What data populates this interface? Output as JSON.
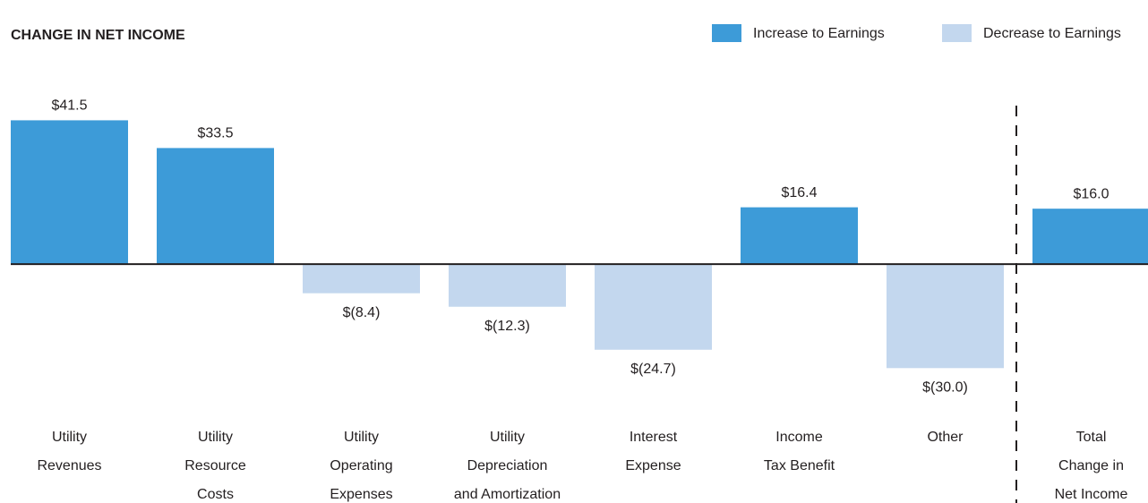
{
  "chart_data": {
    "type": "bar",
    "title": "CHANGE IN NET INCOME",
    "legend": [
      {
        "name": "Increase to Earnings",
        "color": "#3d9bd8"
      },
      {
        "name": "Decrease to Earnings",
        "color": "#c3d7ee"
      }
    ],
    "categories": [
      "Utility\nRevenues",
      "Utility\nResource\nCosts",
      "Utility\nOperating\nExpenses",
      "Utility\nDepreciation\nand Amortization",
      "Interest\nExpense",
      "Income\nTax Benefit",
      "Other",
      "Total\nChange in\nNet Income"
    ],
    "values": [
      41.5,
      33.5,
      -8.4,
      -12.3,
      -24.7,
      16.4,
      -30.0,
      16.0
    ],
    "value_labels": [
      "$41.5",
      "$33.5",
      "$(8.4)",
      "$(12.3)",
      "$(24.7)",
      "$16.4",
      "$(30.0)",
      "$16.0"
    ],
    "ylim": [
      -40,
      50
    ]
  }
}
